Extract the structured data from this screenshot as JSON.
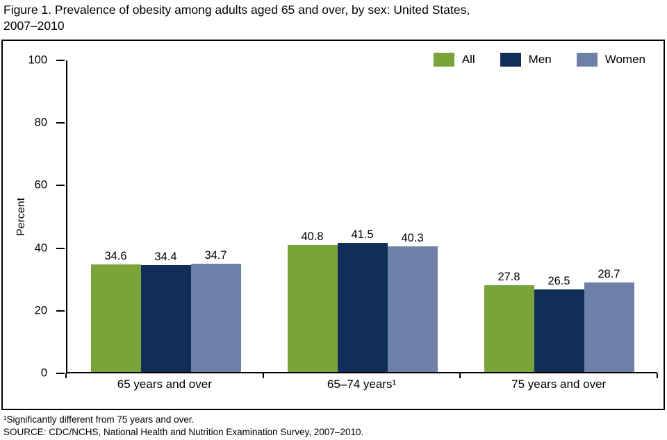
{
  "figure": {
    "title": "Figure 1. Prevalence of obesity among adults aged 65 and over, by sex: United States,\n2007–2010"
  },
  "chart_data": {
    "type": "bar",
    "title": "Figure 1. Prevalence of obesity among adults aged 65 and over, by sex: United States, 2007–2010",
    "categories": [
      "65 years and over",
      "65–74 years¹",
      "75 years and over"
    ],
    "series": [
      {
        "name": "All",
        "color": "#7aa43a",
        "values": [
          34.6,
          40.8,
          27.8
        ]
      },
      {
        "name": "Men",
        "color": "#112e59",
        "values": [
          34.4,
          41.5,
          26.5
        ]
      },
      {
        "name": "Women",
        "color": "#6e80a8",
        "values": [
          34.7,
          40.3,
          28.7
        ]
      }
    ],
    "xlabel": "",
    "ylabel": "Percent",
    "ylim": [
      0,
      100
    ],
    "ytick_step": 20,
    "grid": false,
    "legend_position": "top-right",
    "value_labels_shown": true
  },
  "footnotes": [
    "¹Significantly different from 75 years and over.",
    "SOURCE: CDC/NCHS, National Health and Nutrition Examination Survey, 2007–2010."
  ]
}
